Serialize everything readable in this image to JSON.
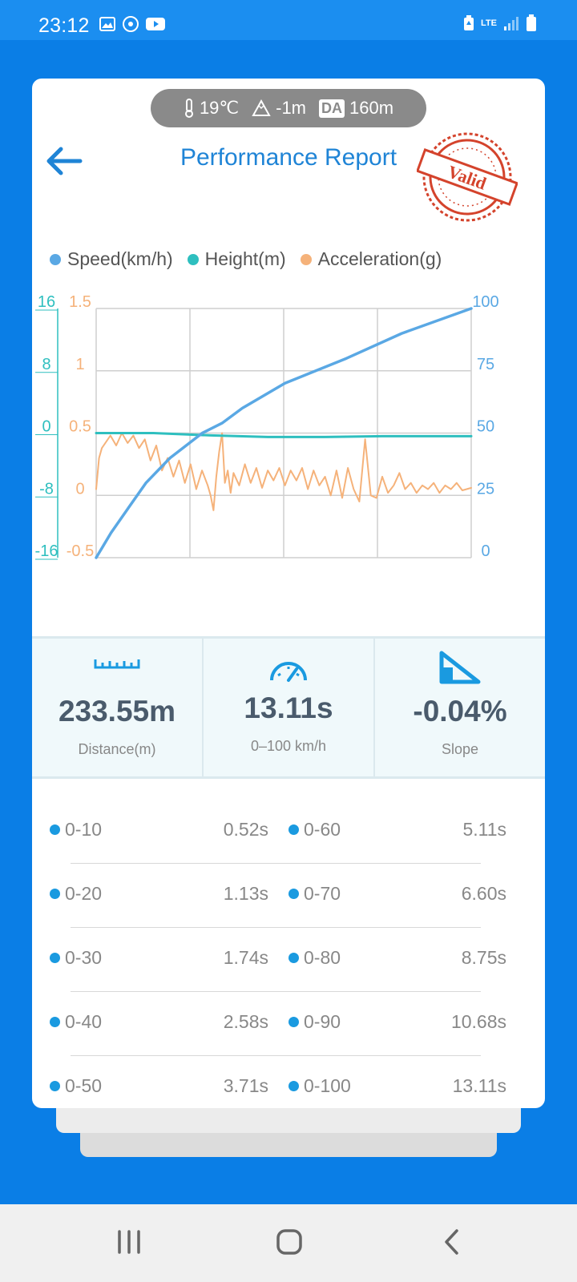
{
  "status": {
    "time": "23:12",
    "network": "LTE"
  },
  "conditions": {
    "temperature": "19℃",
    "altitude": "-1m",
    "da_label": "DA",
    "density_altitude": "160m"
  },
  "header": {
    "title": "Performance Report",
    "stamp_text": "Valid"
  },
  "chart_data": {
    "type": "line",
    "legend": [
      "Speed(km/h)",
      "Height(m)",
      "Acceleration(g)"
    ],
    "colors": {
      "speed": "#5aa8e4",
      "height": "#2ebfbf",
      "acceleration": "#f5b27a"
    },
    "axes": {
      "height_ticks": [
        "16",
        "8",
        "0",
        "-8",
        "-16"
      ],
      "acceleration_ticks": [
        "1.5",
        "1",
        "0.5",
        "0",
        "-0.5"
      ],
      "speed_ticks": [
        "100",
        "75",
        "50",
        "25",
        "0"
      ],
      "height_range": [
        -16,
        16
      ],
      "acceleration_range": [
        -0.5,
        1.5
      ],
      "speed_range": [
        0,
        100
      ],
      "time_range": [
        0,
        13.11
      ],
      "grid": true
    },
    "series": [
      {
        "name": "Speed(km/h)",
        "t": [
          0,
          0.52,
          1.13,
          1.74,
          2.58,
          3.71,
          4.4,
          5.11,
          6.6,
          8.75,
          10.68,
          13.11
        ],
        "values": [
          0,
          10,
          20,
          30,
          40,
          50,
          54,
          60,
          70,
          80,
          90,
          100
        ]
      },
      {
        "name": "Height(m)",
        "t": [
          0,
          2,
          4,
          6,
          8,
          10,
          13.11
        ],
        "values": [
          0,
          0,
          -0.3,
          -0.5,
          -0.5,
          -0.4,
          -0.4
        ]
      },
      {
        "name": "Acceleration(g)",
        "t": [
          0,
          0.1,
          0.2,
          0.5,
          0.7,
          0.9,
          1.1,
          1.3,
          1.5,
          1.7,
          1.9,
          2.1,
          2.3,
          2.5,
          2.7,
          2.9,
          3.1,
          3.3,
          3.5,
          3.7,
          3.9,
          4.0,
          4.1,
          4.2,
          4.3,
          4.4,
          4.5,
          4.6,
          4.7,
          4.8,
          5.0,
          5.2,
          5.4,
          5.6,
          5.8,
          6.0,
          6.2,
          6.4,
          6.6,
          6.8,
          7.0,
          7.2,
          7.4,
          7.6,
          7.8,
          8.0,
          8.2,
          8.4,
          8.6,
          8.7,
          8.8,
          9.0,
          9.2,
          9.3,
          9.4,
          9.6,
          9.8,
          10.0,
          10.2,
          10.4,
          10.6,
          10.8,
          11.0,
          11.2,
          11.4,
          11.6,
          11.8,
          12.0,
          12.2,
          12.4,
          12.6,
          12.8,
          13.11
        ],
        "values": [
          0.05,
          0.3,
          0.38,
          0.48,
          0.4,
          0.5,
          0.42,
          0.48,
          0.38,
          0.45,
          0.28,
          0.4,
          0.2,
          0.3,
          0.15,
          0.28,
          0.1,
          0.25,
          0.05,
          0.2,
          0.08,
          0.0,
          -0.12,
          0.15,
          0.35,
          0.5,
          0.1,
          0.2,
          0.02,
          0.18,
          0.08,
          0.25,
          0.1,
          0.22,
          0.06,
          0.2,
          0.12,
          0.22,
          0.08,
          0.2,
          0.12,
          0.22,
          0.05,
          0.2,
          0.08,
          0.15,
          0.0,
          0.2,
          -0.02,
          0.1,
          0.22,
          0.05,
          -0.05,
          0.2,
          0.45,
          0.0,
          -0.02,
          0.15,
          0.02,
          0.08,
          0.18,
          0.05,
          0.1,
          0.02,
          0.08,
          0.05,
          0.1,
          0.02,
          0.08,
          0.05,
          0.1,
          0.04,
          0.06
        ]
      }
    ]
  },
  "stats": [
    {
      "value": "233.55m",
      "label": "Distance(m)"
    },
    {
      "value": "13.11s",
      "label": "0–100 km/h"
    },
    {
      "value": "-0.04%",
      "label": "Slope"
    }
  ],
  "splits": [
    {
      "left_label": "0-10",
      "left_time": "0.52s",
      "right_label": "0-60",
      "right_time": "5.11s"
    },
    {
      "left_label": "0-20",
      "left_time": "1.13s",
      "right_label": "0-70",
      "right_time": "6.60s"
    },
    {
      "left_label": "0-30",
      "left_time": "1.74s",
      "right_label": "0-80",
      "right_time": "8.75s"
    },
    {
      "left_label": "0-40",
      "left_time": "2.58s",
      "right_label": "0-90",
      "right_time": "10.68s"
    },
    {
      "left_label": "0-50",
      "left_time": "3.71s",
      "right_label": "0-100",
      "right_time": "13.11s"
    }
  ]
}
